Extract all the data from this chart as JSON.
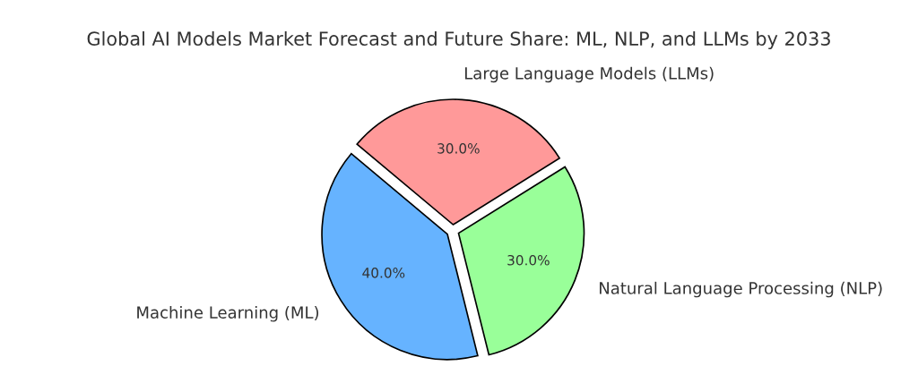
{
  "chart_data": {
    "type": "pie",
    "title": "Global AI Models Market Forecast and Future Share: ML, NLP, and LLMs by 2033",
    "categories": [
      "Machine Learning (ML)",
      "Natural Language Processing (NLP)",
      "Large Language Models (LLMs)"
    ],
    "values": [
      40,
      30,
      30
    ],
    "value_labels": [
      "40.0%",
      "30.0%",
      "30.0%"
    ],
    "colors": [
      "#66b3ff",
      "#99ff99",
      "#ff9999"
    ],
    "legend": false
  }
}
